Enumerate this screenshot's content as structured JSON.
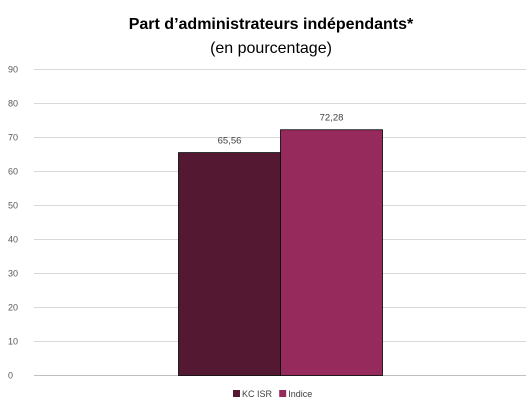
{
  "chart_data": {
    "type": "bar",
    "title": "Part d’administrateurs indépendants*",
    "subtitle": "(en pourcentage)",
    "xlabel": "",
    "ylabel": "",
    "ylim": [
      0,
      90
    ],
    "yticks": [
      0,
      10,
      20,
      30,
      40,
      50,
      60,
      70,
      80,
      90
    ],
    "grid": true,
    "legend_position": "bottom",
    "series": [
      {
        "name": "KC ISR",
        "values": [
          65.56
        ],
        "data_label": "65,56",
        "color": "#541832"
      },
      {
        "name": "Indice",
        "values": [
          72.28
        ],
        "data_label": "72,28",
        "color": "#962a5c"
      }
    ]
  }
}
